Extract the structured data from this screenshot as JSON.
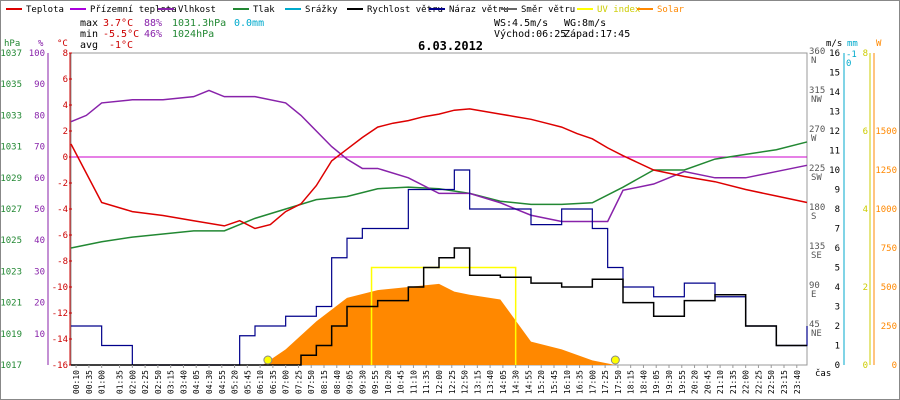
{
  "chart_data": {
    "type": "line",
    "title": "6.03.2012",
    "xlabel": "čas",
    "legend": [
      {
        "label": "Teplota",
        "color": "#dd0000"
      },
      {
        "label": "Přízemní teplota",
        "color": "#aa00dd"
      },
      {
        "label": "Vlhkost",
        "color": "#8822aa"
      },
      {
        "label": "Tlak",
        "color": "#228833"
      },
      {
        "label": "Srážky",
        "color": "#00aacc"
      },
      {
        "label": "Rychlost větru",
        "color": "#000000"
      },
      {
        "label": "Náraz větru",
        "color": "#00008b"
      },
      {
        "label": "Směr větru",
        "color": "#666666"
      },
      {
        "label": "UV index",
        "color": "#ffff00"
      },
      {
        "label": "Solar",
        "color": "#ff8800"
      }
    ],
    "stats": {
      "max_label": "max",
      "max_temp": "3.7°C",
      "max_hum": "88%",
      "max_press": "1031.3hPa",
      "max_rain": "0.0mm",
      "min_label": "min",
      "min_temp": "-5.5°C",
      "min_hum": "46%",
      "min_press": "1024hPa",
      "avg_label": "avg",
      "avg_temp": "-1°C",
      "ws": "WS:4.5m/s",
      "wg": "WG:8m/s",
      "sunrise": "Východ:06:25",
      "sunset": "Západ:17:45"
    },
    "axes": {
      "hpa": {
        "label": "hPa",
        "ticks": [
          "1037",
          "1035",
          "1033",
          "1031",
          "1029",
          "1027",
          "1025",
          "1023",
          "1021",
          "1019",
          "1017"
        ]
      },
      "pct": {
        "label": "%",
        "ticks": [
          "100",
          "90",
          "80",
          "70",
          "60",
          "50",
          "40",
          "30",
          "20",
          "10"
        ]
      },
      "temp": {
        "label": "°C",
        "ticks": [
          "8",
          "6",
          "4",
          "2",
          "0",
          "-2",
          "-4",
          "-6",
          "-8",
          "-10",
          "-12",
          "-14",
          "-16"
        ]
      },
      "dir": {
        "ticks": [
          "360",
          "315",
          "270",
          "225",
          "180",
          "135",
          "90",
          "45"
        ],
        "names": [
          "N",
          "NW",
          "W",
          "SW",
          "S",
          "SE",
          "E",
          "NE"
        ]
      },
      "ms": {
        "label": "m/s",
        "ticks": [
          "16",
          "15",
          "14",
          "13",
          "12",
          "11",
          "10",
          "9",
          "8",
          "7",
          "6",
          "5",
          "4",
          "3",
          "2",
          "1",
          "0"
        ]
      },
      "mm": {
        "label": "mm",
        "ticks": [
          "-1",
          "0"
        ]
      },
      "uv": {
        "ticks": [
          "8",
          "6",
          "4",
          "2",
          "0"
        ]
      },
      "w": {
        "label": "W",
        "ticks": [
          "1500",
          "1250",
          "1000",
          "750",
          "500",
          "250",
          "0"
        ]
      }
    },
    "x_ticks": [
      "00:10",
      "00:35",
      "01:00",
      "01:35",
      "02:00",
      "02:25",
      "02:50",
      "03:15",
      "03:40",
      "04:05",
      "04:30",
      "04:55",
      "05:20",
      "05:45",
      "06:10",
      "06:35",
      "07:00",
      "07:25",
      "07:50",
      "08:15",
      "08:40",
      "09:05",
      "09:30",
      "09:55",
      "10:20",
      "10:45",
      "11:10",
      "11:35",
      "12:00",
      "12:25",
      "12:50",
      "13:15",
      "13:40",
      "14:05",
      "14:30",
      "14:55",
      "15:20",
      "15:45",
      "16:10",
      "16:35",
      "17:00",
      "17:25",
      "17:50",
      "18:15",
      "18:40",
      "19:05",
      "19:30",
      "19:55",
      "20:20",
      "20:45",
      "21:10",
      "21:35",
      "22:00",
      "22:25",
      "22:50",
      "23:15",
      "23:40"
    ],
    "series": [
      {
        "name": "Teplota",
        "unit": "°C",
        "x_hours": [
          0,
          1,
          2,
          3,
          4,
          5,
          5.5,
          6,
          6.5,
          7,
          7.5,
          8,
          8.5,
          9,
          9.5,
          10,
          10.5,
          11,
          11.5,
          12,
          12.5,
          13,
          13.5,
          14,
          14.5,
          15,
          15.5,
          16,
          16.5,
          17,
          17.5,
          18,
          19,
          20,
          21,
          22,
          23,
          24
        ],
        "values": [
          1,
          -3.5,
          -4.2,
          -4.5,
          -4.9,
          -5.3,
          -4.9,
          -5.5,
          -5.2,
          -4.2,
          -3.6,
          -2.2,
          -0.3,
          0.6,
          1.5,
          2.3,
          2.6,
          2.8,
          3.1,
          3.3,
          3.6,
          3.7,
          3.5,
          3.3,
          3.1,
          2.9,
          2.6,
          2.3,
          1.8,
          1.4,
          0.7,
          0.1,
          -1,
          -1.5,
          -1.9,
          -2.5,
          -3,
          -3.5
        ]
      },
      {
        "name": "Vlhkost",
        "unit": "%",
        "x_hours": [
          0,
          0.5,
          1,
          2,
          3,
          4,
          4.5,
          5,
          5.5,
          6,
          7,
          7.5,
          8,
          8.5,
          9,
          9.5,
          10,
          11,
          12,
          13,
          14,
          15,
          16,
          17,
          17.5,
          18,
          19,
          20,
          21,
          22,
          23,
          24
        ],
        "values": [
          78,
          80,
          84,
          85,
          85,
          86,
          88,
          86,
          86,
          86,
          84,
          80,
          75,
          70,
          66,
          63,
          63,
          60,
          55,
          55,
          52,
          48,
          46,
          46,
          46,
          56,
          58,
          62,
          60,
          60,
          62,
          64
        ]
      },
      {
        "name": "Tlak",
        "unit": "hPa",
        "x_hours": [
          0,
          1,
          2,
          3,
          4,
          5,
          6,
          7,
          8,
          9,
          10,
          11,
          12,
          13,
          14,
          15,
          16,
          17,
          18,
          19,
          20,
          21,
          22,
          23,
          24
        ],
        "values": [
          1024.5,
          1024.9,
          1025.2,
          1025.4,
          1025.6,
          1025.6,
          1026.4,
          1027.0,
          1027.6,
          1027.8,
          1028.3,
          1028.4,
          1028.3,
          1028.0,
          1027.5,
          1027.3,
          1027.3,
          1027.4,
          1028.4,
          1029.5,
          1029.5,
          1030.2,
          1030.5,
          1030.8,
          1031.3
        ]
      },
      {
        "name": "Rychlost větru",
        "unit": "m/s",
        "x_hours": [
          0,
          1,
          2,
          3,
          4,
          5,
          6,
          7,
          7.5,
          8,
          8.5,
          9,
          10,
          11,
          11.5,
          12,
          12.5,
          13,
          14,
          15,
          16,
          17,
          18,
          19,
          20,
          21,
          22,
          23,
          24
        ],
        "values": [
          0,
          0,
          0,
          0,
          0,
          0,
          0,
          0,
          0.5,
          1,
          2,
          3,
          3.3,
          4,
          5,
          5.5,
          6,
          4.6,
          4.5,
          4.2,
          4,
          4.4,
          3.2,
          2.5,
          3.3,
          3.6,
          2,
          1,
          1
        ]
      },
      {
        "name": "Náraz větru",
        "unit": "m/s",
        "x_hours": [
          0,
          1,
          2,
          3,
          4,
          5,
          5.5,
          6,
          7,
          8,
          8.5,
          9,
          9.5,
          10,
          11,
          12,
          12.5,
          13,
          14,
          15,
          16,
          17,
          17.5,
          18,
          19,
          20,
          21,
          22,
          23,
          24
        ],
        "values": [
          2,
          1,
          0,
          0,
          0,
          0,
          1.5,
          2,
          2.5,
          3,
          5.5,
          6.5,
          7,
          7,
          9,
          9,
          10,
          8,
          8,
          7.2,
          8,
          7,
          5,
          4,
          3.5,
          4.2,
          3.5,
          2,
          1,
          2
        ]
      },
      {
        "name": "Solar",
        "unit": "W",
        "x_hours": [
          6.25,
          7,
          8,
          9,
          10,
          11,
          12,
          12.5,
          13,
          14,
          15,
          16,
          17,
          17.75
        ],
        "values": [
          0,
          100,
          280,
          430,
          480,
          500,
          520,
          470,
          450,
          420,
          150,
          100,
          30,
          0
        ]
      },
      {
        "name": "UV index",
        "unit": "",
        "x_hours": [
          9.8,
          9.8,
          14.5,
          14.5
        ],
        "values": [
          0,
          2.5,
          2.5,
          0
        ]
      }
    ]
  }
}
